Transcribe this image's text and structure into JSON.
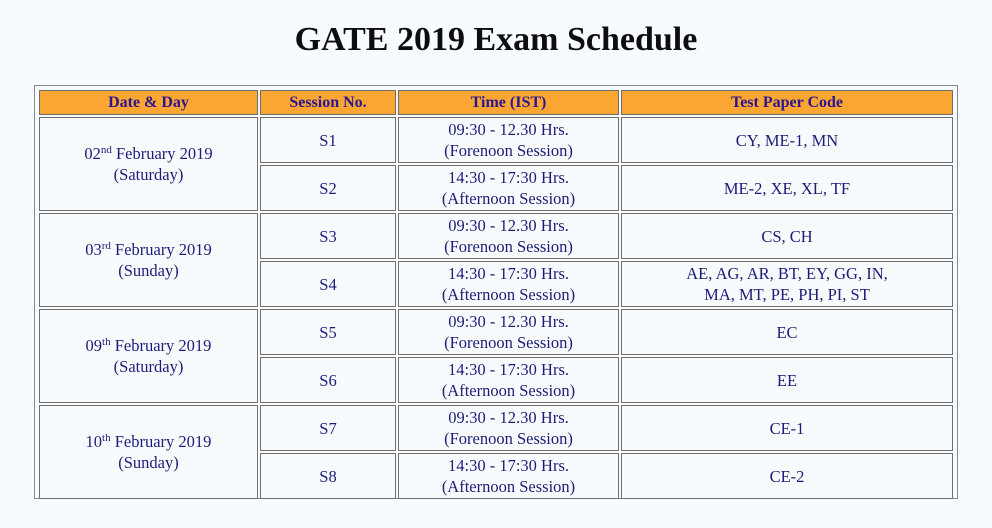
{
  "page": {
    "title": "GATE 2019 Exam Schedule"
  },
  "table": {
    "headers": [
      "Date & Day",
      "Session No.",
      "Time (IST)",
      "Test Paper Code"
    ],
    "colors": {
      "header_bg": "#fba532",
      "header_text": "#2a1690",
      "cell_text": "#1c1c7a",
      "border": "#6e6e6e"
    },
    "days": [
      {
        "day_num": "02",
        "suffix": "nd",
        "month_year": "February 2019",
        "weekday": "(Saturday)",
        "sessions": [
          {
            "session": "S1",
            "time": "09:30 - 12.30 Hrs.",
            "period": "(Forenoon Session)",
            "codes_line1": "CY, ME-1, MN",
            "codes_line2": ""
          },
          {
            "session": "S2",
            "time": "14:30 - 17:30 Hrs.",
            "period": "(Afternoon Session)",
            "codes_line1": "ME-2, XE, XL, TF",
            "codes_line2": ""
          }
        ]
      },
      {
        "day_num": "03",
        "suffix": "rd",
        "month_year": "February 2019",
        "weekday": "(Sunday)",
        "sessions": [
          {
            "session": "S3",
            "time": "09:30 - 12.30 Hrs.",
            "period": "(Forenoon Session)",
            "codes_line1": "CS, CH",
            "codes_line2": ""
          },
          {
            "session": "S4",
            "time": "14:30 - 17:30 Hrs.",
            "period": "(Afternoon Session)",
            "codes_line1": "AE, AG, AR, BT, EY, GG, IN,",
            "codes_line2": "MA, MT, PE, PH, PI, ST"
          }
        ]
      },
      {
        "day_num": "09",
        "suffix": "th",
        "month_year": "February 2019",
        "weekday": "(Saturday)",
        "sessions": [
          {
            "session": "S5",
            "time": "09:30 - 12.30 Hrs.",
            "period": "(Forenoon Session)",
            "codes_line1": "EC",
            "codes_line2": ""
          },
          {
            "session": "S6",
            "time": "14:30 - 17:30 Hrs.",
            "period": "(Afternoon Session)",
            "codes_line1": "EE",
            "codes_line2": ""
          }
        ]
      },
      {
        "day_num": "10",
        "suffix": "th",
        "month_year": "February 2019",
        "weekday": "(Sunday)",
        "sessions": [
          {
            "session": "S7",
            "time": "09:30 - 12.30 Hrs.",
            "period": "(Forenoon Session)",
            "codes_line1": "CE-1",
            "codes_line2": ""
          },
          {
            "session": "S8",
            "time": "14:30 - 17:30 Hrs.",
            "period": "(Afternoon Session)",
            "codes_line1": "CE-2",
            "codes_line2": ""
          }
        ]
      }
    ]
  }
}
